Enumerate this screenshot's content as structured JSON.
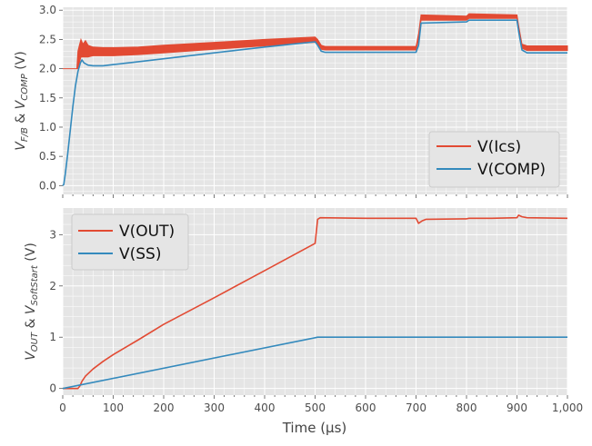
{
  "chart_data": [
    {
      "type": "line",
      "ylabel": "V_F/B & V_COMP (V)",
      "ylabel_parts": {
        "v1": "V",
        "s1": "F/B",
        "amp": " & ",
        "v2": "V",
        "s2": "COMP",
        "unit": " (V)"
      },
      "xlim": [
        0,
        1000
      ],
      "ylim": [
        -0.15,
        3.05
      ],
      "yticks": [
        "0.0",
        "0.5",
        "1.0",
        "1.5",
        "2.0",
        "2.5",
        "3.0"
      ],
      "grid": true,
      "legend_position": "lower-right",
      "series": [
        {
          "name": "V(Ics)",
          "color": "#e24a33",
          "band": true,
          "x": [
            0,
            28,
            30,
            33,
            36,
            40,
            45,
            50,
            60,
            80,
            100,
            150,
            200,
            300,
            400,
            500,
            505,
            512,
            520,
            600,
            700,
            705,
            710,
            800,
            805,
            900,
            903,
            910,
            920,
            1000
          ],
          "low": [
            2.0,
            2.0,
            2.0,
            2.1,
            2.2,
            2.2,
            2.2,
            2.2,
            2.22,
            2.22,
            2.22,
            2.24,
            2.27,
            2.33,
            2.39,
            2.45,
            2.43,
            2.33,
            2.32,
            2.32,
            2.32,
            2.5,
            2.83,
            2.83,
            2.86,
            2.86,
            2.7,
            2.35,
            2.31,
            2.31
          ],
          "high": [
            2.0,
            2.0,
            2.3,
            2.4,
            2.5,
            2.42,
            2.48,
            2.4,
            2.37,
            2.36,
            2.36,
            2.37,
            2.4,
            2.45,
            2.5,
            2.54,
            2.5,
            2.4,
            2.38,
            2.38,
            2.38,
            2.6,
            2.92,
            2.9,
            2.94,
            2.92,
            2.75,
            2.42,
            2.39,
            2.39
          ]
        },
        {
          "name": "V(COMP)",
          "color": "#348abd",
          "x": [
            0,
            2,
            5,
            10,
            15,
            20,
            25,
            30,
            35,
            38,
            42,
            50,
            60,
            80,
            100,
            150,
            200,
            300,
            400,
            500,
            505,
            512,
            520,
            600,
            700,
            705,
            710,
            800,
            805,
            900,
            903,
            910,
            920,
            1000
          ],
          "y": [
            0.0,
            0.02,
            0.2,
            0.55,
            0.95,
            1.35,
            1.7,
            1.95,
            2.1,
            2.15,
            2.1,
            2.06,
            2.05,
            2.05,
            2.07,
            2.12,
            2.17,
            2.27,
            2.37,
            2.46,
            2.4,
            2.3,
            2.28,
            2.28,
            2.28,
            2.4,
            2.78,
            2.8,
            2.83,
            2.83,
            2.65,
            2.32,
            2.27,
            2.27
          ]
        }
      ]
    },
    {
      "type": "line",
      "xlabel": "Time (µs)",
      "ylabel": "V_OUT & V_SoftStart (V)",
      "ylabel_parts": {
        "v1": "V",
        "s1": "OUT",
        "amp": " & ",
        "v2": "V",
        "s2": "SoftStart",
        "unit": " (V)"
      },
      "xlim": [
        0,
        1000
      ],
      "ylim": [
        -0.13,
        3.52
      ],
      "xticks": [
        "0",
        "100",
        "200",
        "300",
        "400",
        "500",
        "600",
        "700",
        "800",
        "900",
        "1,000"
      ],
      "yticks": [
        "0",
        "1",
        "2",
        "3"
      ],
      "grid": true,
      "legend_position": "upper-left",
      "series": [
        {
          "name": "V(OUT)",
          "color": "#e24a33",
          "x": [
            0,
            30,
            34,
            38,
            45,
            60,
            80,
            100,
            150,
            200,
            300,
            400,
            500,
            505,
            510,
            600,
            700,
            702,
            705,
            712,
            720,
            800,
            805,
            850,
            900,
            903,
            910,
            920,
            1000
          ],
          "y": [
            0.0,
            0.0,
            0.05,
            0.14,
            0.24,
            0.38,
            0.53,
            0.66,
            0.95,
            1.25,
            1.77,
            2.3,
            2.83,
            3.3,
            3.33,
            3.32,
            3.32,
            3.28,
            3.22,
            3.27,
            3.3,
            3.31,
            3.32,
            3.32,
            3.33,
            3.38,
            3.35,
            3.33,
            3.32
          ]
        },
        {
          "name": "V(SS)",
          "color": "#348abd",
          "x": [
            0,
            500,
            505,
            1000
          ],
          "y": [
            0.0,
            0.99,
            1.0,
            1.0
          ]
        }
      ]
    }
  ]
}
